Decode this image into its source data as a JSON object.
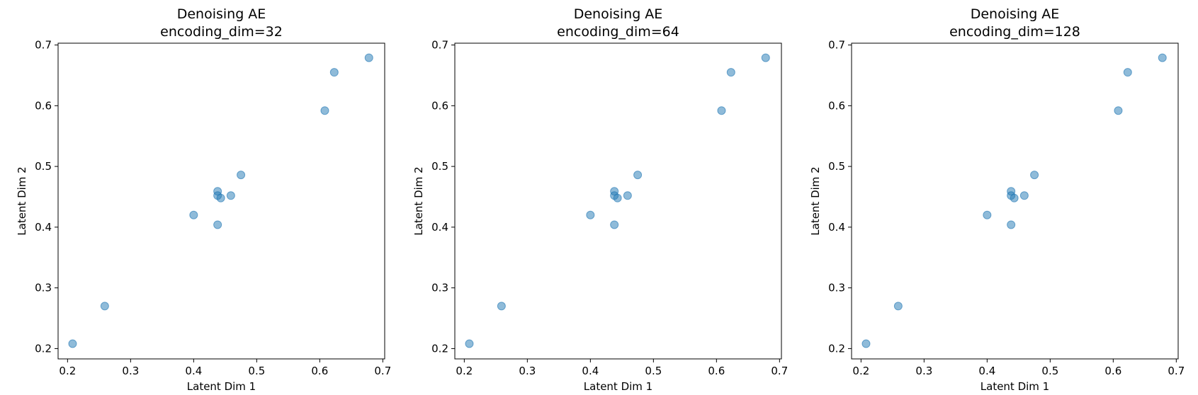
{
  "chart_data": [
    {
      "type": "scatter",
      "title": [
        "Denoising AE",
        "encoding_dim=32"
      ],
      "xlabel": "Latent Dim 1",
      "ylabel": "Latent Dim 2",
      "xlim": [
        0.185,
        0.703
      ],
      "ylim": [
        0.183,
        0.703
      ],
      "xticks": [
        0.2,
        0.3,
        0.4,
        0.5,
        0.6,
        0.7
      ],
      "yticks": [
        0.2,
        0.3,
        0.4,
        0.5,
        0.6,
        0.7
      ],
      "points": [
        [
          0.208,
          0.208
        ],
        [
          0.259,
          0.27
        ],
        [
          0.4,
          0.42
        ],
        [
          0.438,
          0.404
        ],
        [
          0.438,
          0.459
        ],
        [
          0.438,
          0.452
        ],
        [
          0.443,
          0.448
        ],
        [
          0.459,
          0.452
        ],
        [
          0.475,
          0.486
        ],
        [
          0.608,
          0.592
        ],
        [
          0.623,
          0.655
        ],
        [
          0.678,
          0.679
        ]
      ],
      "color": "#1f77b4"
    },
    {
      "type": "scatter",
      "title": [
        "Denoising AE",
        "encoding_dim=64"
      ],
      "xlabel": "Latent Dim 1",
      "ylabel": "Latent Dim 2",
      "xlim": [
        0.185,
        0.703
      ],
      "ylim": [
        0.183,
        0.703
      ],
      "xticks": [
        0.2,
        0.3,
        0.4,
        0.5,
        0.6,
        0.7
      ],
      "yticks": [
        0.2,
        0.3,
        0.4,
        0.5,
        0.6,
        0.7
      ],
      "points": [
        [
          0.208,
          0.208
        ],
        [
          0.259,
          0.27
        ],
        [
          0.4,
          0.42
        ],
        [
          0.438,
          0.404
        ],
        [
          0.438,
          0.459
        ],
        [
          0.438,
          0.452
        ],
        [
          0.443,
          0.448
        ],
        [
          0.459,
          0.452
        ],
        [
          0.475,
          0.486
        ],
        [
          0.608,
          0.592
        ],
        [
          0.623,
          0.655
        ],
        [
          0.678,
          0.679
        ]
      ],
      "color": "#1f77b4"
    },
    {
      "type": "scatter",
      "title": [
        "Denoising AE",
        "encoding_dim=128"
      ],
      "xlabel": "Latent Dim 1",
      "ylabel": "Latent Dim 2",
      "xlim": [
        0.185,
        0.703
      ],
      "ylim": [
        0.183,
        0.703
      ],
      "xticks": [
        0.2,
        0.3,
        0.4,
        0.5,
        0.6,
        0.7
      ],
      "yticks": [
        0.2,
        0.3,
        0.4,
        0.5,
        0.6,
        0.7
      ],
      "points": [
        [
          0.208,
          0.208
        ],
        [
          0.259,
          0.27
        ],
        [
          0.4,
          0.42
        ],
        [
          0.438,
          0.404
        ],
        [
          0.438,
          0.459
        ],
        [
          0.438,
          0.452
        ],
        [
          0.443,
          0.448
        ],
        [
          0.459,
          0.452
        ],
        [
          0.475,
          0.486
        ],
        [
          0.608,
          0.592
        ],
        [
          0.623,
          0.655
        ],
        [
          0.678,
          0.679
        ]
      ],
      "color": "#1f77b4"
    }
  ]
}
